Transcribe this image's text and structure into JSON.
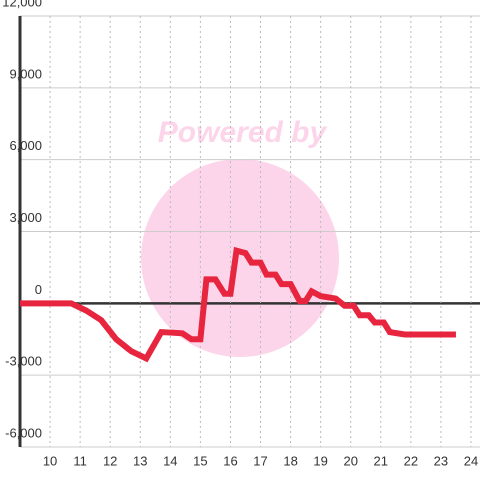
{
  "chart_data": {
    "type": "line",
    "watermark": "Powered by",
    "xlim": [
      9,
      24.3
    ],
    "xticks": [
      10,
      11,
      12,
      13,
      14,
      15,
      16,
      17,
      18,
      19,
      20,
      21,
      22,
      23,
      24
    ],
    "ylim": [
      -6000,
      12000
    ],
    "yticks": [
      {
        "value": -6000,
        "label": "-6,000"
      },
      {
        "value": -3000,
        "label": "-3,000"
      },
      0,
      {
        "value": 3000,
        "label": "3,000"
      },
      {
        "value": 6000,
        "label": "6,000"
      },
      {
        "value": 9000,
        "label": "9,000"
      },
      {
        "value": 12000,
        "label": "12,000"
      }
    ],
    "grid": true,
    "series": [
      {
        "color": "#e8253f",
        "x": [
          9,
          10.7,
          11.2,
          11.7,
          12.2,
          12.7,
          13.2,
          13.7,
          14.4,
          14.7,
          15.0,
          15.2,
          15.5,
          15.8,
          16.0,
          16.2,
          16.5,
          16.7,
          17.0,
          17.2,
          17.5,
          17.7,
          18.0,
          18.3,
          18.5,
          18.7,
          19.0,
          19.5,
          19.8,
          20.1,
          20.3,
          20.6,
          20.8,
          21.1,
          21.3,
          21.8,
          23.5
        ],
        "values": [
          0,
          0,
          -300,
          -700,
          -1500,
          -2000,
          -2300,
          -1200,
          -1250,
          -1500,
          -1500,
          1000,
          1000,
          400,
          400,
          2200,
          2100,
          1700,
          1700,
          1200,
          1200,
          800,
          800,
          100,
          100,
          500,
          300,
          200,
          -100,
          -100,
          -500,
          -500,
          -800,
          -800,
          -1200,
          -1300,
          -1300
        ]
      }
    ]
  }
}
